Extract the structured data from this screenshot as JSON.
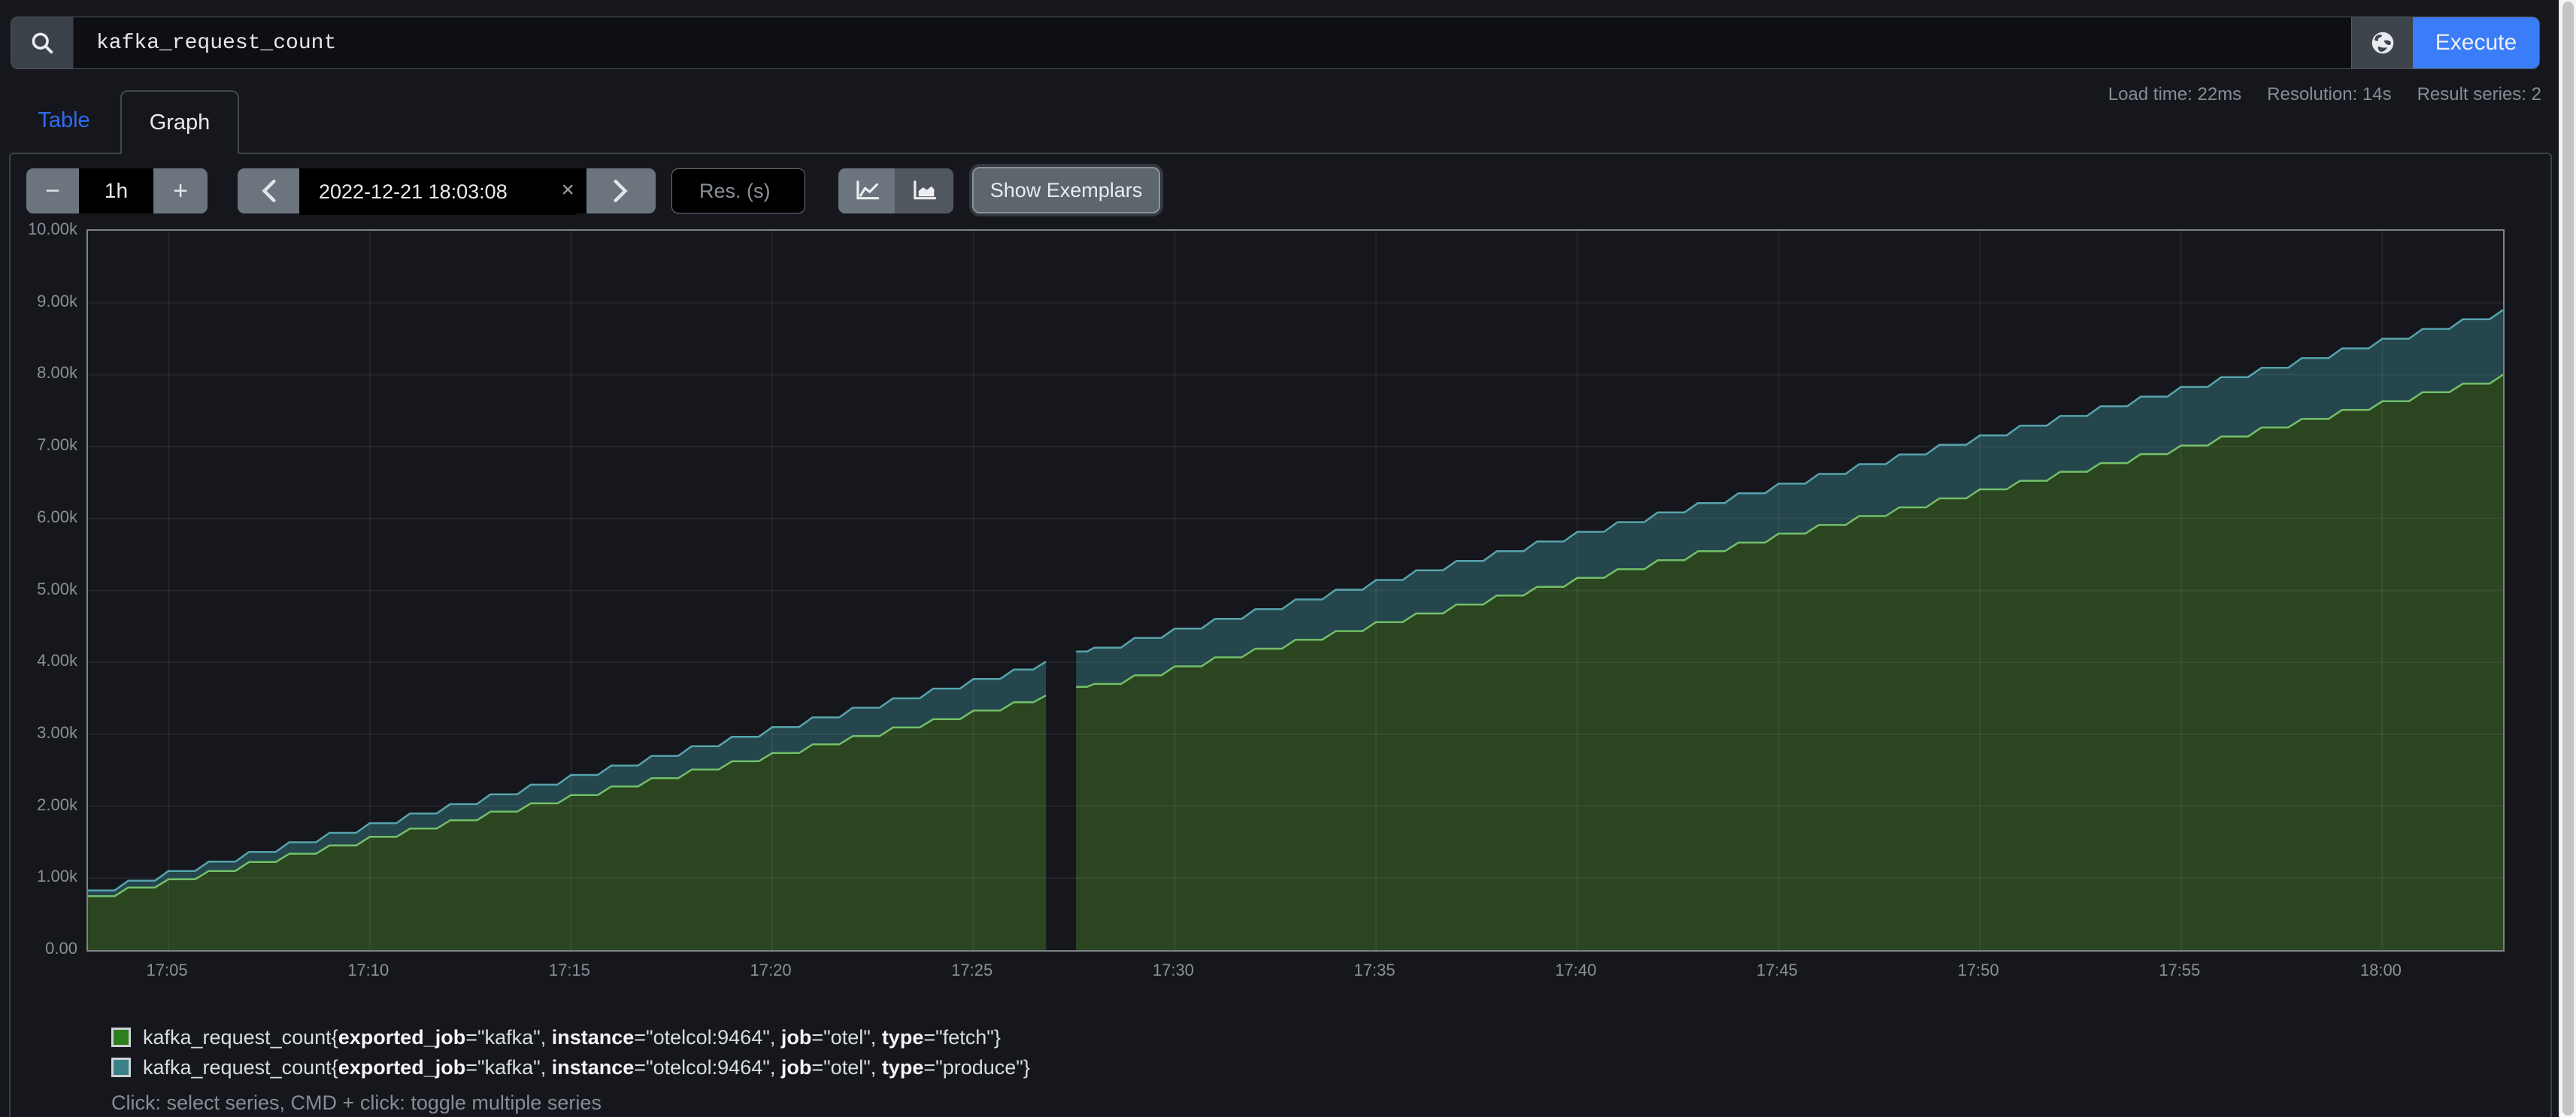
{
  "query_bar": {
    "query": "kafka_request_count",
    "execute_label": "Execute",
    "search_icon": "magnifier",
    "explorer_icon": "globe"
  },
  "stats": {
    "load_time": "Load time: 22ms",
    "resolution": "Resolution: 14s",
    "result_series": "Result series: 2"
  },
  "tabs": {
    "table_label": "Table",
    "graph_label": "Graph"
  },
  "toolbar": {
    "range_decrease_label": "−",
    "range_value": "1h",
    "range_increase_label": "+",
    "datetime_value": "2022-12-21 18:03:08",
    "clear_label": "×",
    "resolution_placeholder": "Res. (s)",
    "show_exemplars_label": "Show Exemplars",
    "chart_type_icons": [
      "line-chart",
      "stacked-chart"
    ]
  },
  "colors": {
    "accent_blue": "#3b7cf8",
    "link_blue": "#2f6cf1",
    "fetch_line": "#73bf69",
    "fetch_fill": "#2b4520",
    "produce_line": "#57a3ad",
    "produce_fill": "#24464c",
    "grid": "rgba(255,255,255,0.06)"
  },
  "chart_data": {
    "type": "area",
    "stacked": false,
    "xlim": [
      0,
      60
    ],
    "ylim": [
      0,
      10000
    ],
    "x_unit": "minutes after 17:03",
    "x_ticks": [
      {
        "t": 2,
        "label": "17:05"
      },
      {
        "t": 7,
        "label": "17:10"
      },
      {
        "t": 12,
        "label": "17:15"
      },
      {
        "t": 17,
        "label": "17:20"
      },
      {
        "t": 22,
        "label": "17:25"
      },
      {
        "t": 27,
        "label": "17:30"
      },
      {
        "t": 32,
        "label": "17:35"
      },
      {
        "t": 37,
        "label": "17:40"
      },
      {
        "t": 42,
        "label": "17:45"
      },
      {
        "t": 47,
        "label": "17:50"
      },
      {
        "t": 52,
        "label": "17:55"
      },
      {
        "t": 57,
        "label": "18:00"
      }
    ],
    "y_ticks": [
      {
        "v": 0,
        "label": "0.00"
      },
      {
        "v": 1000,
        "label": "1.00k"
      },
      {
        "v": 2000,
        "label": "2.00k"
      },
      {
        "v": 3000,
        "label": "3.00k"
      },
      {
        "v": 4000,
        "label": "4.00k"
      },
      {
        "v": 5000,
        "label": "5.00k"
      },
      {
        "v": 6000,
        "label": "6.00k"
      },
      {
        "v": 7000,
        "label": "7.00k"
      },
      {
        "v": 8000,
        "label": "8.00k"
      },
      {
        "v": 9000,
        "label": "9.00k"
      },
      {
        "v": 10000,
        "label": "10.00k"
      }
    ],
    "series": [
      {
        "name": "fetch",
        "line_color": "#73bf69",
        "fill_color": "#2b4520",
        "segments": [
          [
            [
              0,
              750
            ],
            [
              1,
              870
            ],
            [
              2,
              985
            ],
            [
              3,
              1100
            ],
            [
              4,
              1225
            ],
            [
              5,
              1340
            ],
            [
              6,
              1455
            ],
            [
              7,
              1575
            ],
            [
              8,
              1690
            ],
            [
              9,
              1805
            ],
            [
              10,
              1925
            ],
            [
              11,
              2040
            ],
            [
              12,
              2155
            ],
            [
              13,
              2275
            ],
            [
              14,
              2390
            ],
            [
              15,
              2510
            ],
            [
              16,
              2625
            ],
            [
              17,
              2740
            ],
            [
              18,
              2860
            ],
            [
              19,
              2975
            ],
            [
              20,
              3095
            ],
            [
              21,
              3210
            ],
            [
              22,
              3330
            ],
            [
              23,
              3445
            ],
            [
              23.8,
              3540
            ]
          ],
          [
            [
              24.55,
              3660
            ],
            [
              25,
              3700
            ],
            [
              26,
              3820
            ],
            [
              27,
              3945
            ],
            [
              28,
              4070
            ],
            [
              29,
              4190
            ],
            [
              30,
              4315
            ],
            [
              31,
              4435
            ],
            [
              32,
              4560
            ],
            [
              33,
              4680
            ],
            [
              34,
              4805
            ],
            [
              35,
              4930
            ],
            [
              36,
              5050
            ],
            [
              37,
              5175
            ],
            [
              38,
              5295
            ],
            [
              39,
              5420
            ],
            [
              40,
              5545
            ],
            [
              41,
              5665
            ],
            [
              42,
              5790
            ],
            [
              43,
              5910
            ],
            [
              44,
              6035
            ],
            [
              45,
              6155
            ],
            [
              46,
              6280
            ],
            [
              47,
              6405
            ],
            [
              48,
              6525
            ],
            [
              49,
              6650
            ],
            [
              50,
              6770
            ],
            [
              51,
              6895
            ],
            [
              52,
              7015
            ],
            [
              53,
              7140
            ],
            [
              54,
              7265
            ],
            [
              55,
              7385
            ],
            [
              56,
              7510
            ],
            [
              57,
              7630
            ],
            [
              58,
              7755
            ],
            [
              59,
              7875
            ],
            [
              60,
              8000
            ]
          ]
        ]
      },
      {
        "name": "produce",
        "line_color": "#57a3ad",
        "fill_color": "#24464c",
        "segments": [
          [
            [
              0,
              830
            ],
            [
              1,
              965
            ],
            [
              2,
              1100
            ],
            [
              3,
              1230
            ],
            [
              4,
              1365
            ],
            [
              5,
              1500
            ],
            [
              6,
              1630
            ],
            [
              7,
              1765
            ],
            [
              8,
              1900
            ],
            [
              9,
              2030
            ],
            [
              10,
              2165
            ],
            [
              11,
              2300
            ],
            [
              12,
              2435
            ],
            [
              13,
              2565
            ],
            [
              14,
              2700
            ],
            [
              15,
              2835
            ],
            [
              16,
              2965
            ],
            [
              17,
              3100
            ],
            [
              18,
              3235
            ],
            [
              19,
              3370
            ],
            [
              20,
              3500
            ],
            [
              21,
              3635
            ],
            [
              22,
              3770
            ],
            [
              23,
              3900
            ],
            [
              23.8,
              4010
            ]
          ],
          [
            [
              24.55,
              4150
            ],
            [
              25,
              4205
            ],
            [
              26,
              4340
            ],
            [
              27,
              4470
            ],
            [
              28,
              4605
            ],
            [
              29,
              4740
            ],
            [
              30,
              4875
            ],
            [
              31,
              5010
            ],
            [
              32,
              5145
            ],
            [
              33,
              5280
            ],
            [
              34,
              5410
            ],
            [
              35,
              5545
            ],
            [
              36,
              5680
            ],
            [
              37,
              5815
            ],
            [
              38,
              5950
            ],
            [
              39,
              6085
            ],
            [
              40,
              6215
            ],
            [
              41,
              6350
            ],
            [
              42,
              6485
            ],
            [
              43,
              6620
            ],
            [
              44,
              6755
            ],
            [
              45,
              6890
            ],
            [
              46,
              7025
            ],
            [
              47,
              7155
            ],
            [
              48,
              7290
            ],
            [
              49,
              7425
            ],
            [
              50,
              7560
            ],
            [
              51,
              7695
            ],
            [
              52,
              7830
            ],
            [
              53,
              7965
            ],
            [
              54,
              8095
            ],
            [
              55,
              8230
            ],
            [
              56,
              8365
            ],
            [
              57,
              8500
            ],
            [
              58,
              8635
            ],
            [
              59,
              8770
            ],
            [
              60,
              8900
            ]
          ]
        ]
      }
    ]
  },
  "legend": {
    "items": [
      {
        "swatch_color": "#2e7d1f",
        "metric": "kafka_request_count",
        "labels": [
          [
            "exported_job",
            "\"kafka\""
          ],
          [
            "instance",
            "\"otelcol:9464\""
          ],
          [
            "job",
            "\"otel\""
          ],
          [
            "type",
            "\"fetch\""
          ]
        ]
      },
      {
        "swatch_color": "#3a8089",
        "metric": "kafka_request_count",
        "labels": [
          [
            "exported_job",
            "\"kafka\""
          ],
          [
            "instance",
            "\"otelcol:9464\""
          ],
          [
            "job",
            "\"otel\""
          ],
          [
            "type",
            "\"produce\""
          ]
        ]
      }
    ],
    "hint": "Click: select series, CMD + click: toggle multiple series"
  }
}
